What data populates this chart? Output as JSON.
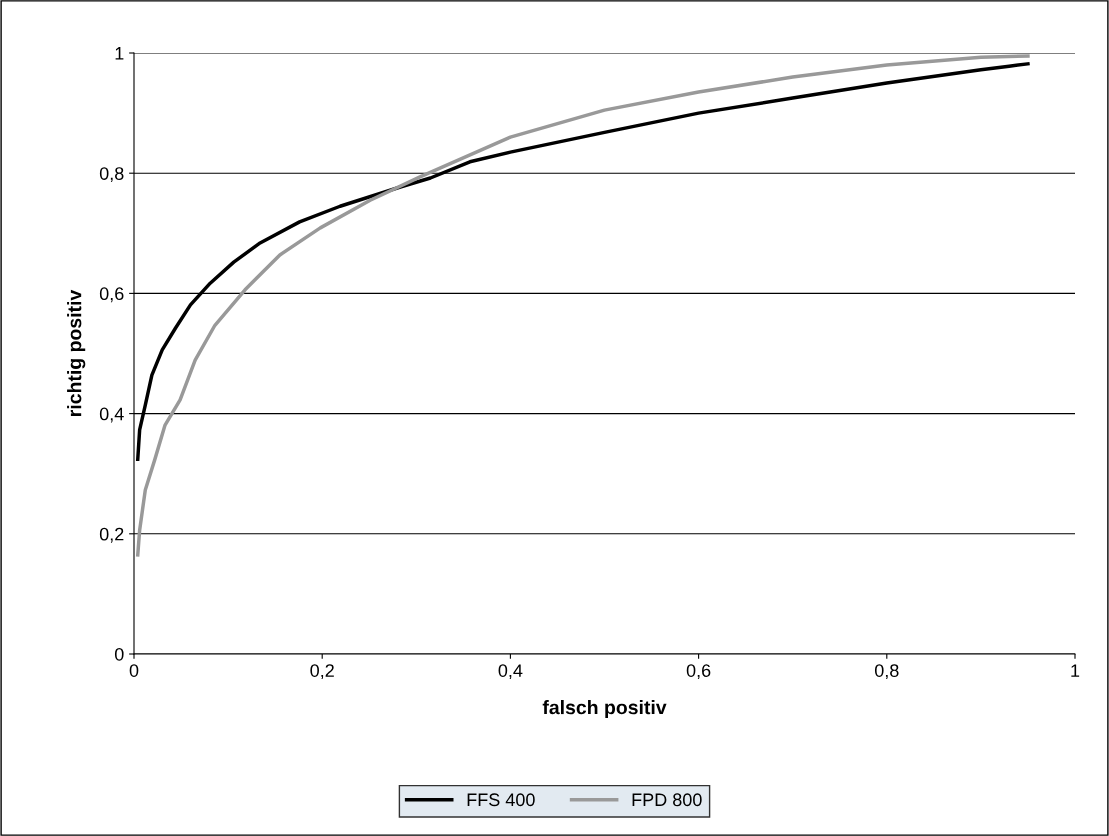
{
  "chart_data": {
    "type": "line",
    "xlabel": "falsch positiv",
    "ylabel": "richtig positiv",
    "xlim": [
      0,
      1
    ],
    "ylim": [
      0,
      1
    ],
    "xticks": [
      0,
      {
        "value": 0.2,
        "label": "0,2"
      },
      {
        "value": 0.4,
        "label": "0,4"
      },
      {
        "value": 0.6,
        "label": "0,6"
      },
      {
        "value": 0.8,
        "label": "0,8"
      },
      1
    ],
    "yticks": [
      0,
      {
        "value": 0.2,
        "label": "0,2"
      },
      {
        "value": 0.4,
        "label": "0,4"
      },
      {
        "value": 0.6,
        "label": "0,6"
      },
      {
        "value": 0.8,
        "label": "0,8"
      },
      1
    ],
    "grid": "y",
    "legend": "bottom",
    "marker": "none",
    "line_style": "solid",
    "series": [
      {
        "name": "FFS 400",
        "color": "#000000",
        "x": [
          0.004,
          0.006,
          0.012,
          0.019,
          0.03,
          0.044,
          0.06,
          0.081,
          0.106,
          0.134,
          0.176,
          0.219,
          0.283,
          0.315,
          0.357,
          0.4,
          0.5,
          0.6,
          0.7,
          0.8,
          0.9,
          0.93,
          0.95
        ],
        "values": [
          0.324,
          0.373,
          0.414,
          0.464,
          0.506,
          0.542,
          0.581,
          0.617,
          0.652,
          0.684,
          0.719,
          0.745,
          0.777,
          0.792,
          0.819,
          0.835,
          0.868,
          0.9,
          0.925,
          0.95,
          0.972,
          0.978,
          0.982
        ]
      },
      {
        "name": "FPD 800",
        "color": "#999999",
        "x": [
          0.004,
          0.006,
          0.012,
          0.022,
          0.033,
          0.049,
          0.065,
          0.086,
          0.118,
          0.155,
          0.198,
          0.251,
          0.304,
          0.4,
          0.5,
          0.6,
          0.7,
          0.8,
          0.9,
          0.95
        ],
        "values": [
          0.165,
          0.206,
          0.273,
          0.323,
          0.381,
          0.423,
          0.489,
          0.547,
          0.606,
          0.664,
          0.709,
          0.755,
          0.794,
          0.86,
          0.905,
          0.935,
          0.96,
          0.98,
          0.993,
          0.995
        ]
      }
    ]
  }
}
